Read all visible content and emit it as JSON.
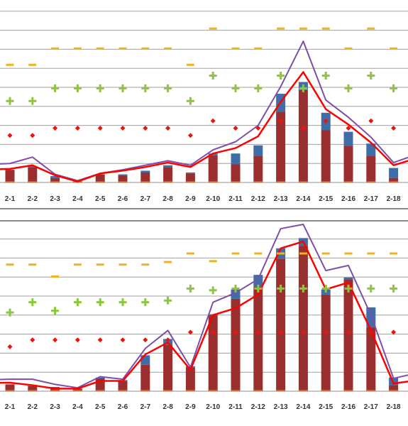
{
  "colors": {
    "bar_base": "#9B2F2F",
    "bar_top": "#3F6DA8",
    "line_red": "#FF0000",
    "line_purple": "#7D4FA8",
    "dash_marker": "#F2B21C",
    "plus_marker": "#8CC63F",
    "diamond_marker": "#E8140E",
    "grid": "#A0A0A0"
  },
  "chart_data": [
    {
      "type": "bar",
      "panel": "top",
      "ylim": [
        0,
        10
      ],
      "grid": true,
      "categories": [
        "2-1",
        "2-2",
        "2-3",
        "2-4",
        "2-5",
        "2-6",
        "2-7",
        "2-8",
        "2-9",
        "2-10",
        "2-11",
        "2-12",
        "2-13",
        "2-14",
        "2-15",
        "2-16",
        "2-17",
        "2-18"
      ],
      "series": [
        {
          "role": "bar_base",
          "values": [
            0.7,
            0.85,
            0.25,
            0.05,
            0.45,
            0.4,
            0.55,
            0.85,
            0.5,
            1.5,
            1.0,
            1.45,
            3.9,
            5.1,
            2.9,
            2.0,
            1.45,
            0.25
          ]
        },
        {
          "role": "bar_top",
          "values": [
            0.0,
            0.05,
            0.1,
            0.0,
            0.0,
            0.05,
            0.1,
            0.1,
            0.05,
            0.1,
            0.6,
            0.6,
            1.0,
            0.45,
            0.95,
            0.8,
            0.7,
            0.55
          ]
        },
        {
          "role": "line_red",
          "values": [
            0.75,
            0.95,
            0.4,
            0.05,
            0.5,
            0.65,
            0.85,
            1.1,
            0.85,
            1.6,
            1.9,
            2.55,
            4.45,
            6.1,
            4.05,
            3.2,
            2.2,
            0.95
          ]
        },
        {
          "role": "line_purple",
          "values": [
            1.05,
            1.4,
            0.45,
            0.1,
            0.5,
            0.7,
            0.95,
            1.2,
            0.95,
            1.8,
            2.25,
            3.15,
            5.3,
            7.8,
            4.55,
            3.6,
            2.5,
            1.1
          ]
        },
        {
          "role": "dash_marker",
          "values": [
            6.5,
            6.5,
            7.4,
            7.4,
            7.4,
            7.4,
            7.4,
            7.4,
            6.5,
            8.5,
            7.4,
            7.4,
            8.5,
            8.5,
            8.5,
            7.4,
            8.5,
            7.4
          ]
        },
        {
          "role": "plus_marker",
          "values": [
            4.5,
            4.5,
            5.2,
            5.2,
            5.2,
            5.2,
            5.2,
            5.2,
            4.5,
            5.9,
            5.2,
            5.2,
            5.9,
            5.2,
            5.9,
            5.2,
            5.9,
            5.2
          ]
        },
        {
          "role": "diamond_marker",
          "values": [
            2.6,
            2.6,
            3.0,
            3.0,
            3.0,
            3.0,
            3.0,
            3.0,
            2.6,
            3.4,
            3.0,
            3.0,
            3.4,
            3.0,
            3.4,
            3.0,
            3.4,
            3.0
          ]
        }
      ]
    },
    {
      "type": "bar",
      "panel": "bottom",
      "ylim": [
        0,
        10
      ],
      "grid": true,
      "categories": [
        "2-1",
        "2-2",
        "2-3",
        "2-4",
        "2-5",
        "2-6",
        "2-7",
        "2-8",
        "2-9",
        "2-10",
        "2-11",
        "2-12",
        "2-13",
        "2-14",
        "2-15",
        "2-16",
        "2-17",
        "2-18"
      ],
      "series": [
        {
          "role": "bar_base",
          "values": [
            0.4,
            0.3,
            0.2,
            0.15,
            0.75,
            0.6,
            1.55,
            2.7,
            1.4,
            4.45,
            5.4,
            6.1,
            7.75,
            8.5,
            5.65,
            6.55,
            3.75,
            0.35
          ]
        },
        {
          "role": "bar_top",
          "values": [
            0.0,
            0.05,
            0.05,
            0.0,
            0.05,
            0.05,
            0.55,
            0.35,
            0.05,
            0.05,
            0.55,
            0.7,
            0.6,
            0.45,
            0.3,
            0.1,
            1.15,
            0.45
          ]
        },
        {
          "role": "line_red",
          "values": [
            0.5,
            0.35,
            0.15,
            0.15,
            0.6,
            0.6,
            2.15,
            2.85,
            1.25,
            4.45,
            4.85,
            5.65,
            8.35,
            8.75,
            5.95,
            6.35,
            3.55,
            0.45
          ]
        },
        {
          "role": "line_purple",
          "values": [
            0.7,
            0.7,
            0.4,
            0.2,
            0.85,
            0.7,
            2.5,
            3.55,
            1.4,
            5.2,
            5.75,
            6.55,
            9.5,
            9.75,
            7.05,
            7.35,
            4.45,
            0.75
          ]
        },
        {
          "role": "dash_marker",
          "values": [
            7.4,
            7.4,
            6.7,
            7.4,
            7.4,
            7.4,
            7.4,
            7.55,
            8.05,
            7.6,
            8.05,
            8.05,
            8.05,
            8.05,
            8.05,
            8.05,
            8.05,
            8.05
          ]
        },
        {
          "role": "plus_marker",
          "values": [
            4.6,
            5.2,
            4.7,
            5.2,
            5.2,
            5.2,
            5.2,
            5.3,
            6.0,
            5.9,
            6.0,
            6.0,
            6.0,
            6.0,
            6.0,
            6.0,
            6.0,
            6.0
          ]
        },
        {
          "role": "diamond_marker",
          "values": [
            2.6,
            3.0,
            3.0,
            3.0,
            3.0,
            3.0,
            3.0,
            3.0,
            3.45,
            3.45,
            3.45,
            3.45,
            3.45,
            3.45,
            3.45,
            3.45,
            3.45,
            3.45
          ]
        }
      ]
    }
  ]
}
